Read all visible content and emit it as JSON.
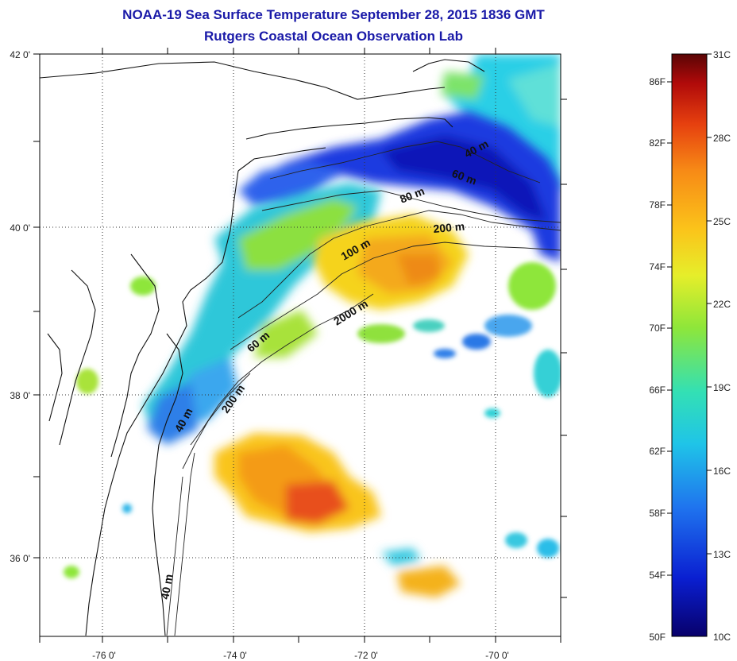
{
  "title": {
    "line1": "NOAA-19 Sea Surface Temperature September 28, 2015 1836 GMT",
    "line2": "Rutgers Coastal Ocean Observation Lab"
  },
  "axes": {
    "lat_labels": [
      "42 0'",
      "40 0'",
      "38 0'",
      "36 0'"
    ],
    "lon_labels": [
      "-76 0'",
      "-74 0'",
      "-72 0'",
      "-70 0'"
    ]
  },
  "contours": [
    "40 m",
    "60 m",
    "80 m",
    "100 m",
    "200 m",
    "2000 m",
    "40 m",
    "60 m",
    "200 m",
    "40 m"
  ],
  "colorbar": {
    "fahrenheit": [
      "86F",
      "82F",
      "78F",
      "74F",
      "70F",
      "66F",
      "62F",
      "58F",
      "54F",
      "50F"
    ],
    "celsius": [
      "31C",
      "28C",
      "25C",
      "22C",
      "19C",
      "16C",
      "13C",
      "10C"
    ],
    "colors": [
      "#08006b",
      "#0a1fd1",
      "#1f73ee",
      "#1fc4e8",
      "#33e0b4",
      "#8ee63a",
      "#e6ee2a",
      "#fbc31a",
      "#f78a16",
      "#e6400f",
      "#b00a0a",
      "#5a0505"
    ]
  },
  "colors": {
    "title": "#1a1aa8",
    "land": "#ffffff"
  }
}
